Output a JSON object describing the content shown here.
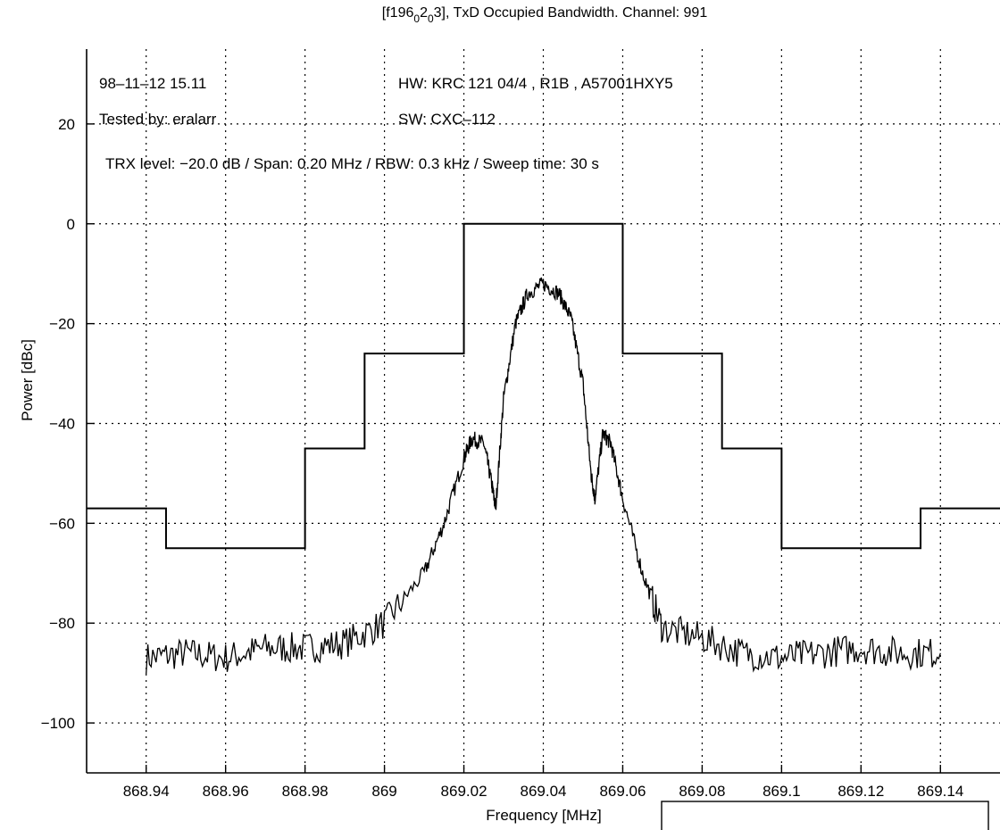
{
  "chart_data": {
    "type": "line",
    "title": "[f196_0 2_0 3], TxD Occupied Bandwidth. Channel: 991",
    "title_parts": {
      "pre": "[f196",
      "sub1": "0",
      "mid": "2",
      "sub2": "0",
      "post": "3], TxD Occupied Bandwidth. Channel: 991"
    },
    "xlabel": "Frequency [MHz]",
    "ylabel": "Power [dBc]",
    "xlim": [
      868.925,
      869.155
    ],
    "ylim": [
      -110,
      35
    ],
    "grid": true,
    "xticks": [
      868.94,
      868.96,
      868.98,
      869,
      869.02,
      869.04,
      869.06,
      869.08,
      869.1,
      869.12,
      869.14
    ],
    "xtick_labels": [
      "868.94",
      "868.96",
      "868.98",
      "869",
      "869.02",
      "869.04",
      "869.06",
      "869.08",
      "869.1",
      "869.12",
      "869.14"
    ],
    "yticks": [
      20,
      0,
      -20,
      -40,
      -60,
      -80,
      -100
    ],
    "ytick_labels": [
      "20",
      "0",
      "−20",
      "−40",
      "−60",
      "−80",
      "−100"
    ],
    "annotations": [
      "98–11–12    15.11",
      "HW: KRC 121 04/4 , R1B , A57001HXY5",
      "Tested by: eralarr",
      "SW: CXC–112",
      "TRX level: −20.0 dB / Span: 0.20 MHz / RBW: 0.3 kHz / Sweep time: 30 s"
    ],
    "series": [
      {
        "kind": "mask",
        "x": [
          868.925,
          868.945,
          868.945,
          868.965,
          868.965,
          868.98,
          868.98,
          868.995,
          868.995,
          869.02,
          869.02,
          869.06,
          869.06,
          869.085,
          869.085,
          869.1,
          869.1,
          869.115,
          869.115,
          869.135,
          869.135,
          869.155
        ],
        "y": [
          -57,
          -57,
          -65,
          -65,
          -65,
          -65,
          -45,
          -45,
          -26,
          -26,
          0,
          0,
          -26,
          -26,
          -45,
          -45,
          -65,
          -65,
          -65,
          -65,
          -57,
          -57
        ]
      },
      {
        "kind": "spectrum",
        "x": [
          868.94,
          868.95,
          868.96,
          868.97,
          868.98,
          868.99,
          869.0,
          869.01,
          869.015,
          869.02,
          869.022,
          869.025,
          869.027,
          869.028,
          869.03,
          869.033,
          869.036,
          869.04,
          869.044,
          869.047,
          869.05,
          869.052,
          869.053,
          869.055,
          869.057,
          869.06,
          869.065,
          869.07,
          869.08,
          869.09,
          869.1,
          869.11,
          869.12,
          869.13,
          869.14
        ],
        "y": [
          -87,
          -86,
          -87,
          -85,
          -85,
          -84,
          -80,
          -70,
          -60,
          -47,
          -43,
          -44,
          -52,
          -57,
          -35,
          -20,
          -14,
          -12,
          -14,
          -19,
          -32,
          -50,
          -55,
          -42,
          -44,
          -55,
          -70,
          -81,
          -83,
          -86,
          -87,
          -86,
          -85,
          -86,
          -86
        ]
      }
    ]
  }
}
